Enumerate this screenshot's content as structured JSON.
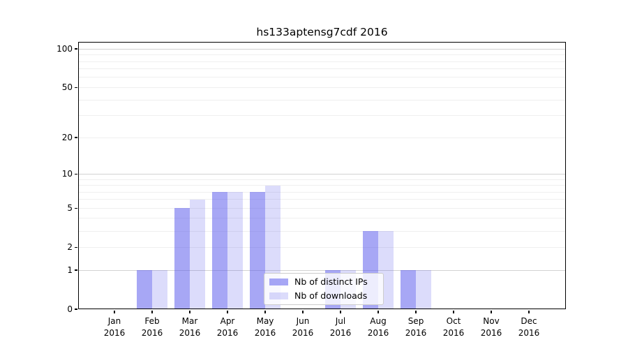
{
  "window": {
    "background": "#ffffff"
  },
  "chart_data": {
    "type": "bar",
    "title": "hs133aptensg7cdf 2016",
    "categories": [
      "Jan 2016",
      "Feb 2016",
      "Mar 2016",
      "Apr 2016",
      "May 2016",
      "Jun 2016",
      "Jul 2016",
      "Aug 2016",
      "Sep 2016",
      "Oct 2016",
      "Nov 2016",
      "Dec 2016"
    ],
    "series": [
      {
        "name": "Nb of distinct IPs",
        "color": "rgba(80,80,235,0.5)",
        "values": [
          0,
          1,
          5,
          7,
          7,
          0,
          1,
          3,
          1,
          0,
          0,
          0
        ]
      },
      {
        "name": "Nb of downloads",
        "color": "rgba(80,80,235,0.2)",
        "values": [
          0,
          1,
          6,
          7,
          8,
          0,
          1,
          3,
          1,
          0,
          0,
          0
        ]
      }
    ],
    "xlabel": "",
    "ylabel": "",
    "y_scale": "log(1+x)",
    "y_tick_values": [
      0,
      1,
      2,
      5,
      10,
      20,
      50,
      100
    ],
    "y_tick_labels": [
      "0",
      "1",
      "2",
      "5",
      "10",
      "20",
      "50",
      "100"
    ],
    "y_major_gridlines": [
      1,
      10,
      100
    ],
    "y_minor_gridlines": [
      2,
      3,
      4,
      5,
      6,
      7,
      8,
      9,
      20,
      30,
      40,
      50,
      60,
      70,
      80,
      90
    ],
    "ylim": [
      0,
      113
    ],
    "grid": "horizontal only",
    "legend_position": "lower center, inside axes"
  },
  "colors": {
    "bar_distinct_ips": "rgba(80,80,235,0.5)",
    "bar_downloads": "rgba(80,80,235,0.2)",
    "grid_major": "#d2d2d2",
    "grid_minor": "#efefef",
    "spine": "#000000",
    "legend_border": "#cccccc",
    "legend_background": "rgba(255,255,255,0.8)"
  },
  "legend": {
    "items": [
      {
        "swatch": "distinct-ips-swatch",
        "label": "Nb of distinct IPs"
      },
      {
        "swatch": "downloads-swatch",
        "label": "Nb of downloads"
      }
    ]
  }
}
